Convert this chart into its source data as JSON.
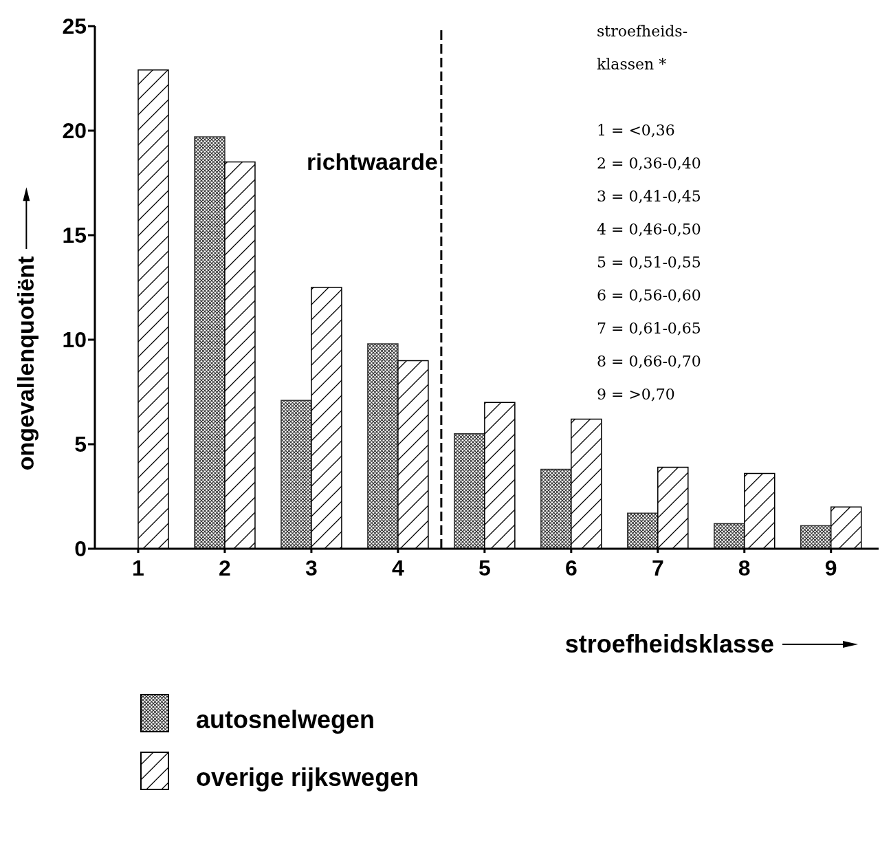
{
  "chart_data": {
    "type": "bar",
    "xlabel": "stroefheidsklasse",
    "ylabel": "ongevallenquotiënt",
    "x": [
      1,
      2,
      3,
      4,
      5,
      6,
      7,
      8,
      9
    ],
    "xlim": [
      0.5,
      9.55
    ],
    "xticks": [
      1,
      2,
      3,
      4,
      5,
      6,
      7,
      8,
      9
    ],
    "ylim": [
      0,
      25
    ],
    "yticks": [
      0,
      5,
      10,
      15,
      20,
      25
    ],
    "grid": false,
    "legend": "bottom left",
    "series": [
      {
        "name": "autosnelwegen",
        "color": "#333333",
        "values": [
          null,
          19.7,
          7.1,
          9.8,
          5.5,
          3.8,
          1.7,
          1.2,
          1.1
        ]
      },
      {
        "name": "overige  rijkswegen",
        "color": "#000000",
        "values": [
          22.9,
          18.5,
          12.5,
          9.0,
          7.0,
          6.2,
          3.9,
          3.6,
          2.0
        ]
      }
    ],
    "ref_lines": [
      {
        "axis": "x",
        "value": 4.5,
        "label": "richtwaarde",
        "line_style": "dashed"
      }
    ],
    "annotations": [
      "stroefheids-",
      "klassen *",
      "1 = <0,36",
      "2 = 0,36-0,40",
      "3 = 0,41-0,45",
      "4 = 0,46-0,50",
      "5 = 0,51-0,55",
      "6 = 0,56-0,60",
      "7 = 0,61-0,65",
      "8 = 0,66-0,70",
      "9 = >0,70"
    ]
  }
}
